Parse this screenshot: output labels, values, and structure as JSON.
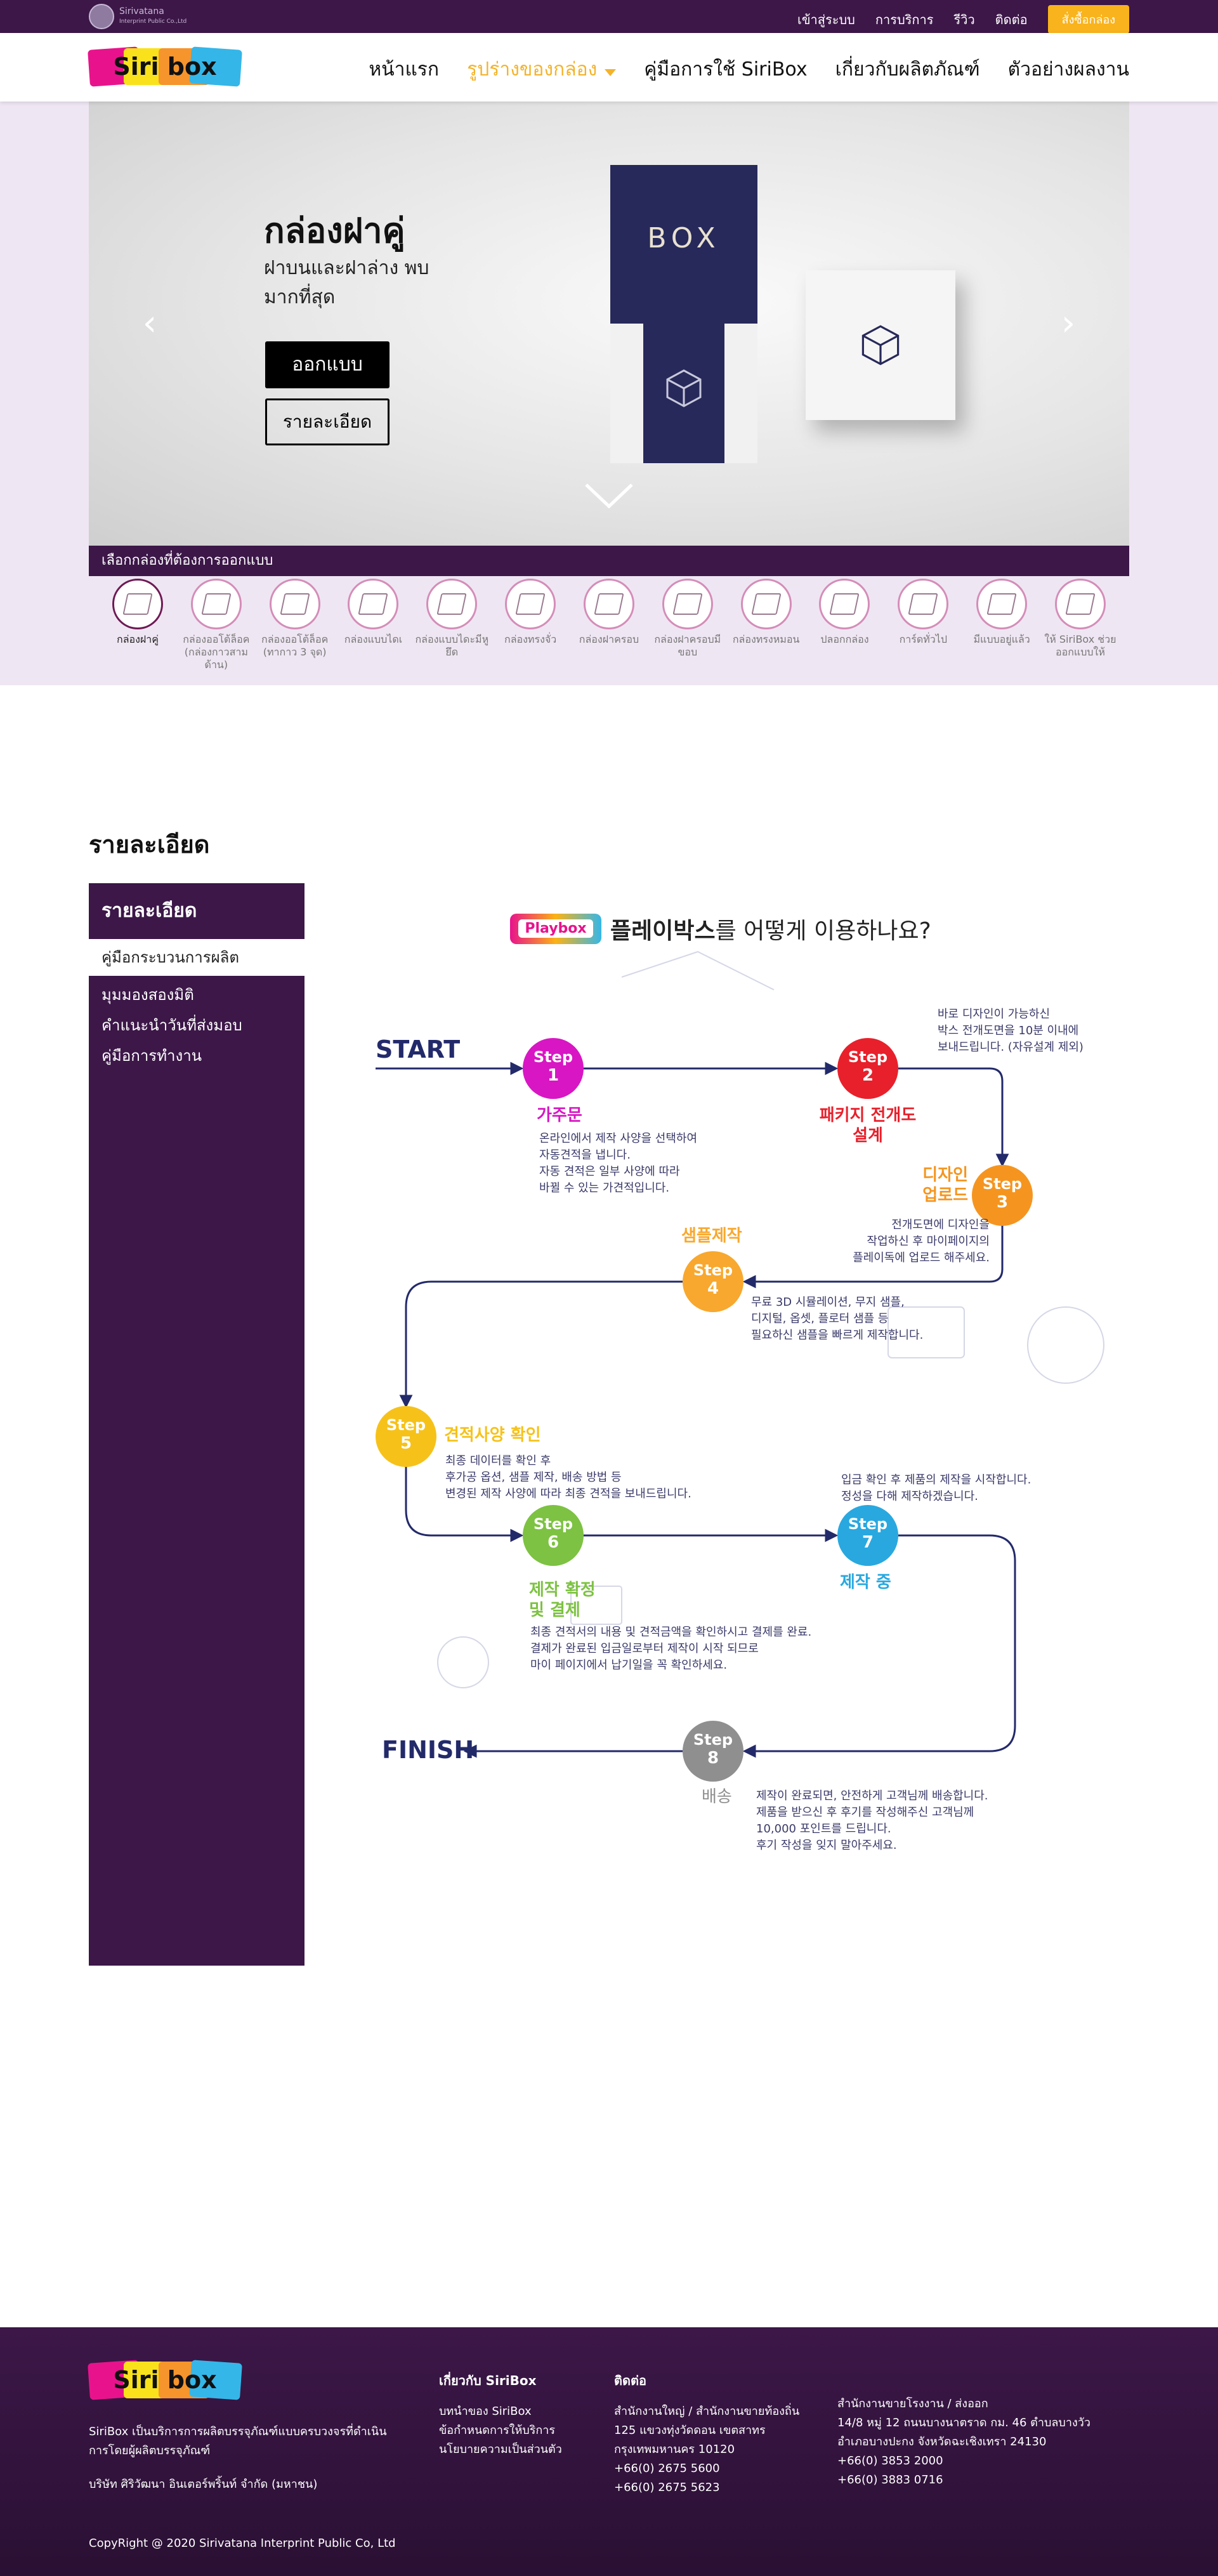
{
  "topbar": {
    "brand_name": "Sirivatana",
    "brand_sub": "Interprint Public Co.,Ltd",
    "links": [
      "เข้าสู่ระบบ",
      "การบริการ",
      "รีวิว",
      "ติดต่อ"
    ],
    "order_button": "สั่งซื้อกล่อง"
  },
  "header": {
    "logo_text": "Siri box",
    "nav": [
      {
        "label": "หน้าแรก"
      },
      {
        "label": "รูปร่างของกล่อง"
      },
      {
        "label": "คู่มือการใช้ SiriBox"
      },
      {
        "label": "เกี่ยวกับผลิตภัณฑ์"
      },
      {
        "label": "ตัวอย่างผลงาน"
      }
    ]
  },
  "hero": {
    "title": "กล่องฝาคู่",
    "subtitle": "ฝาบนและฝาล่าง พบมากที่สุด",
    "design_button": "ออกแบบ",
    "detail_button": "รายละเอียด",
    "box_label": "BOX",
    "prev": "‹",
    "next": "›"
  },
  "box_types": {
    "title": "เลือกกล่องที่ต้องการออกแบบ",
    "items": [
      {
        "label": "กล่องฝาคู่"
      },
      {
        "label": "กล่องออโต้ล็อค (กล่องกาวสามด้าน)"
      },
      {
        "label": "กล่องออโต้ล็อค (ทากาว 3 จุด)"
      },
      {
        "label": "กล่องแบบไดเ"
      },
      {
        "label": "กล่องแบบไดะมีหูยึด"
      },
      {
        "label": "กล่องทรงจั่ว"
      },
      {
        "label": "กล่องฝาครอบ"
      },
      {
        "label": "กล่องฝาครอบมีขอบ"
      },
      {
        "label": "กล่องทรงหมอน"
      },
      {
        "label": "ปลอกกล่อง"
      },
      {
        "label": "การ์ดทั่วไป"
      },
      {
        "label": "มีแบบอยู่แล้ว"
      },
      {
        "label": "ให้ SiriBox ช่วยออกแบบให้"
      }
    ]
  },
  "details": {
    "section_title": "รายละเอียด",
    "menu_head": "รายละเอียด",
    "menu_items": [
      "คู่มือกระบวนการผลิต",
      "มุมมองสองมิติ",
      "คำแนะนำวันที่ส่งมอบ",
      "คู่มือการทำงาน"
    ]
  },
  "diagram": {
    "logo": "Playbox",
    "title_bold": "플레이박스",
    "title_rest": "를 어떻게 이용하나요?",
    "start": "START",
    "finish": "FINISH",
    "steps": [
      {
        "s": "Step",
        "n": "1",
        "title": "가주문",
        "desc": "온라인에서 제작 사양을 선택하여\n자동견적을 냅니다.\n자동 견적은 일부 사양에 따라\n바뀔 수 있는 가견적입니다.",
        "color": "#d816c4"
      },
      {
        "s": "Step",
        "n": "2",
        "title": "패키지 전개도\n설계",
        "desc": "바로 디자인이 가능하신\n박스 전개도면을 10분 이내에\n보내드립니다. (자유설계 제외)",
        "color": "#e8202b"
      },
      {
        "s": "Step",
        "n": "3",
        "title": "디자인\n업로드",
        "desc": "전개도면에 디자인을\n작업하신 후 마이페이지의\n플레이독에 업로드 해주세요.",
        "color": "#f5951f"
      },
      {
        "s": "Step",
        "n": "4",
        "title": "샘플제작",
        "desc": "무료 3D 시뮬레이션, 무지 샘플,\n디지털, 옵셋, 플로터 샘플 등\n필요하신 샘플을 빠르게 제작합니다.",
        "color": "#f8a82e"
      },
      {
        "s": "Step",
        "n": "5",
        "title": "견적사양 확인",
        "desc": "최종 데이터를 확인 후\n후가공 옵션, 샘플 제작, 배송 방법 등\n변경된 제작 사양에 따라 최종 견적을 보내드립니다.",
        "color": "#f6c21a"
      },
      {
        "s": "Step",
        "n": "6",
        "title": "제작 확정\n및 결제",
        "desc": "최종 견적서의 내용 및 견적금액을 확인하시고 결제를 완료.\n결제가 완료된 입금일로부터 제작이 시작 되므로\n마이 페이지에서 납기일을 꼭 확인하세요.",
        "color": "#7dc242"
      },
      {
        "s": "Step",
        "n": "7",
        "title": "제작 중",
        "desc": "입금 확인 후 제품의 제작을 시작합니다.\n정성을 다해 제작하겠습니다.",
        "color": "#29a8e0"
      },
      {
        "s": "Step",
        "n": "8",
        "title": "배송",
        "desc": "제작이 완료되면, 안전하게 고객님께 배송합니다.\n제품을 받으신 후 후기를 작성해주신 고객님께\n10,000 포인트를 드립니다.\n후기 작성을 잊지 말아주세요.",
        "color": "#8f8f8f"
      }
    ]
  },
  "footer": {
    "logo_text": "Siri box",
    "desc": "SiriBox เป็นบริการการผลิตบรรจุภัณฑ์แบบครบวงจรที่ดำเนินการโดยผู้ผลิตบรรจุภัณฑ์",
    "company": "บริษัท ศิริวัฒนา อินเตอร์พริ้นท์ จำกัด (มหาชน)",
    "copyright": "CopyRight @ 2020 Sirivatana Interprint Public Co, Ltd",
    "about_head": "เกี่ยวกับ SiriBox",
    "about_links": [
      "บทนำของ SiriBox",
      "ข้อกำหนดการให้บริการ",
      "นโยบายความเป็นส่วนตัว"
    ],
    "contact_head": "ติดต่อ",
    "hq": [
      "สำนักงานใหญ่ / สำนักงานขายท้องถิ่น",
      "125 แขวงทุ่งวัดดอน เขตสาทร",
      "กรุงเทพมหานคร 10120",
      "+66(0) 2675 5600",
      "+66(0) 2675 5623"
    ],
    "factory": [
      "สำนักงานขายโรงงาน / ส่งออก",
      "14/8 หมู่ 12 ถนนบางนาตราด กม. 46 ตำบลบางวัว",
      "อำเภอบางปะกง จังหวัดฉะเชิงเทรา 24130",
      "+66(0) 3853 2000",
      "+66(0) 3883 0716"
    ]
  },
  "colors": {
    "purple": "#3c1748",
    "accent_yellow": "#f9b31c",
    "hero_bg": "#efe6f3",
    "navy": "#232a6a"
  }
}
